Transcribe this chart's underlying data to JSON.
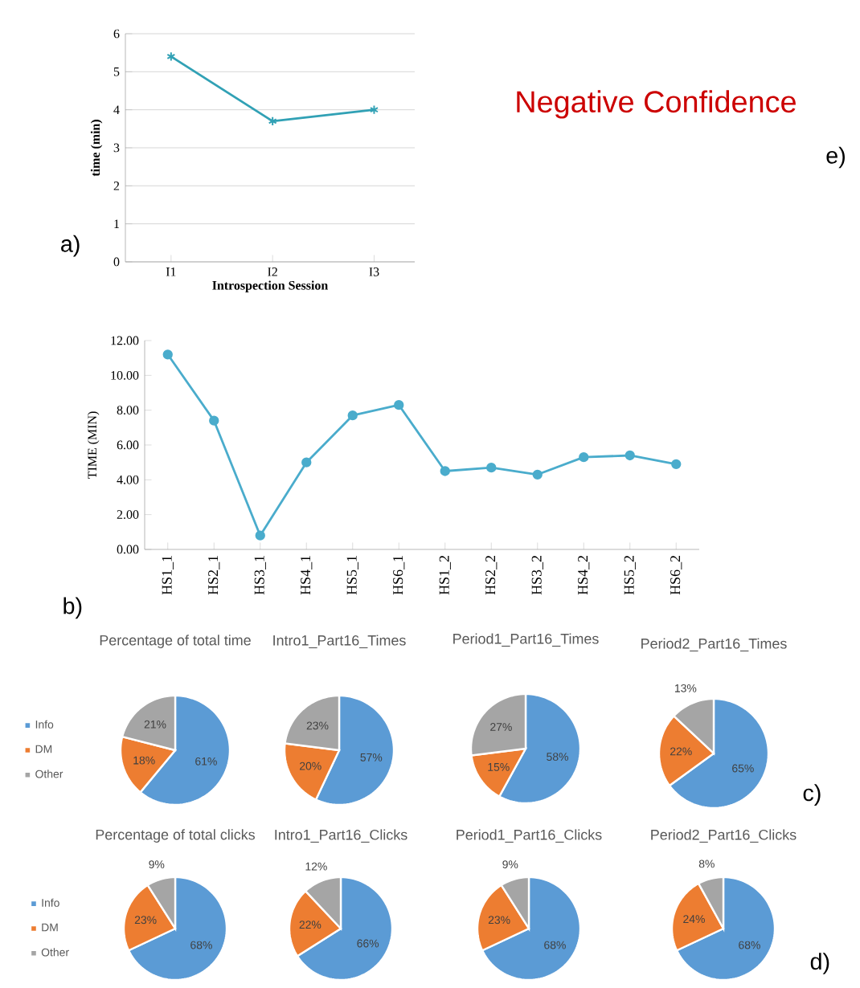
{
  "chart_data": [
    {
      "type": "line",
      "categories": [
        "I1",
        "I2",
        "I3"
      ],
      "values": [
        5.4,
        3.7,
        4.0
      ],
      "color": "#31a1b5",
      "marker": "cross",
      "ylim": [
        0,
        6
      ],
      "yticks": [
        0,
        1,
        2,
        3,
        4,
        5,
        6
      ],
      "grid": "y",
      "xlabel": "Introspection Session",
      "ylabel": "time (min)",
      "annotations": [
        "a)"
      ]
    },
    {
      "type": "other",
      "title": "Negative Confidence",
      "annotations": [
        "e)"
      ]
    },
    {
      "type": "line",
      "categories": [
        "HS1_1",
        "HS2_1",
        "HS3_1",
        "HS4_1",
        "HS5_1",
        "HS6_1",
        "HS1_2",
        "HS2_2",
        "HS3_2",
        "HS4_2",
        "HS5_2",
        "HS6_2"
      ],
      "values": [
        11.2,
        7.4,
        0.8,
        5.0,
        7.7,
        8.3,
        4.5,
        4.7,
        4.3,
        5.3,
        5.4,
        4.9
      ],
      "color": "#4aaccc",
      "marker": "circle",
      "ylim": [
        0,
        12
      ],
      "yticks": [
        {
          "value": 0,
          "label": "0.00"
        },
        {
          "value": 2,
          "label": "2.00"
        },
        {
          "value": 4,
          "label": "4.00"
        },
        {
          "value": 6,
          "label": "6.00"
        },
        {
          "value": 8,
          "label": "8.00"
        },
        {
          "value": 10,
          "label": "10.00"
        },
        {
          "value": 12,
          "label": "12.00"
        }
      ],
      "ylabel": "TIME (MIN)",
      "annotations": [
        "b)"
      ]
    },
    {
      "type": "pie",
      "title": "Percentage of total time",
      "categories": [
        "Info",
        "DM",
        "Other"
      ],
      "values": [
        61,
        18,
        21
      ],
      "colors": [
        "#5b9bd5",
        "#ed7d31",
        "#a5a5a5"
      ],
      "value_labels": [
        "61%",
        "18%",
        "21%"
      ],
      "legend": "left"
    },
    {
      "type": "pie",
      "title": "Intro1_Part16_Times",
      "categories": [
        null,
        null,
        null
      ],
      "values": [
        57,
        20,
        23
      ],
      "colors": [
        "#5b9bd5",
        "#ed7d31",
        "#a5a5a5"
      ],
      "value_labels": [
        "57%",
        "20%",
        "23%"
      ]
    },
    {
      "type": "pie",
      "title": "Period1_Part16_Times",
      "categories": [
        null,
        null,
        null
      ],
      "values": [
        58,
        15,
        27
      ],
      "colors": [
        "#5b9bd5",
        "#ed7d31",
        "#a5a5a5"
      ],
      "value_labels": [
        "58%",
        "15%",
        "27%"
      ]
    },
    {
      "type": "pie",
      "title": "Period2_Part16_Times",
      "categories": [
        null,
        null,
        null
      ],
      "values": [
        65,
        22,
        13
      ],
      "colors": [
        "#5b9bd5",
        "#ed7d31",
        "#a5a5a5"
      ],
      "value_labels": [
        "65%",
        "22%",
        "13%"
      ],
      "annotations": [
        "c)"
      ]
    },
    {
      "type": "pie",
      "title": "Percentage of total clicks",
      "categories": [
        "Info",
        "DM",
        "Other"
      ],
      "values": [
        68,
        23,
        9
      ],
      "colors": [
        "#5b9bd5",
        "#ed7d31",
        "#a5a5a5"
      ],
      "value_labels": [
        "68%",
        "23%",
        "9%"
      ],
      "legend": "left"
    },
    {
      "type": "pie",
      "title": "Intro1_Part16_Clicks",
      "categories": [
        null,
        null,
        null
      ],
      "values": [
        66,
        22,
        12
      ],
      "colors": [
        "#5b9bd5",
        "#ed7d31",
        "#a5a5a5"
      ],
      "value_labels": [
        "66%",
        "22%",
        "12%"
      ]
    },
    {
      "type": "pie",
      "title": "Period1_Part16_Clicks",
      "categories": [
        null,
        null,
        null
      ],
      "values": [
        68,
        23,
        9
      ],
      "colors": [
        "#5b9bd5",
        "#ed7d31",
        "#a5a5a5"
      ],
      "value_labels": [
        "68%",
        "23%",
        "9%"
      ]
    },
    {
      "type": "pie",
      "title": "Period2_Part16_Clicks",
      "categories": [
        null,
        null,
        null
      ],
      "values": [
        68,
        24,
        8
      ],
      "colors": [
        "#5b9bd5",
        "#ed7d31",
        "#a5a5a5"
      ],
      "value_labels": [
        "68%",
        "24%",
        "8%"
      ],
      "annotations": [
        "d)"
      ]
    }
  ]
}
